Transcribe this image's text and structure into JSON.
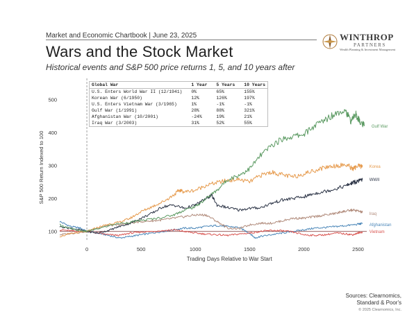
{
  "header": {
    "chartbook": "Market and Economic Chartbook | June 23, 2025",
    "title": "Wars and the Stock Market",
    "subtitle": "Historical events and S&P 500 price returns 1, 5, and 10 years after"
  },
  "logo": {
    "name": "WINTHROP",
    "sub": "PARTNERS",
    "tagline": "Wealth Planning & Investment Management"
  },
  "table": {
    "headers": [
      "Global War",
      "1 Year",
      "5 Years",
      "10 Years"
    ],
    "rows": [
      [
        "U.S. Enters World War II (12/1941)",
        "0%",
        "65%",
        "155%"
      ],
      [
        "Korean War (6/1950)",
        "12%",
        "126%",
        "197%"
      ],
      [
        "U.S. Enters Vietnam War (3/1965)",
        "1%",
        "-1%",
        "-1%"
      ],
      [
        "Gulf War (1/1991)",
        "28%",
        "88%",
        "321%"
      ],
      [
        "Afghanistan War (10/2001)",
        "-24%",
        "19%",
        "21%"
      ],
      [
        "Iraq War (3/2003)",
        "31%",
        "52%",
        "55%"
      ]
    ]
  },
  "footer": {
    "sources_1": "Sources: Clearnomics,",
    "sources_2": "Standard & Poor's",
    "copyright": "© 2025 Clearnomics, Inc."
  },
  "chart_data": {
    "type": "line",
    "title": "",
    "xlabel": "Trading Days Relative to War Start",
    "ylabel": "S&P 500 Return Indexed to 100",
    "xlim": [
      -250,
      2580
    ],
    "ylim": [
      70,
      560
    ],
    "xticks": [
      0,
      500,
      1000,
      1500,
      2000,
      2500
    ],
    "yticks": [
      100,
      200,
      300,
      400,
      500
    ],
    "reference_vertical_x": 0,
    "reference_horizontal_y": 100,
    "series": [
      {
        "name": "Gulf War",
        "color": "#5b9a62",
        "points": [
          [
            -250,
            120
          ],
          [
            -150,
            108
          ],
          [
            -60,
            102
          ],
          [
            0,
            100
          ],
          [
            100,
            108
          ],
          [
            250,
            122
          ],
          [
            400,
            128
          ],
          [
            500,
            133
          ],
          [
            650,
            140
          ],
          [
            800,
            150
          ],
          [
            900,
            165
          ],
          [
            1000,
            175
          ],
          [
            1100,
            200
          ],
          [
            1200,
            225
          ],
          [
            1300,
            258
          ],
          [
            1400,
            270
          ],
          [
            1500,
            290
          ],
          [
            1600,
            330
          ],
          [
            1700,
            360
          ],
          [
            1800,
            380
          ],
          [
            1900,
            388
          ],
          [
            2000,
            395
          ],
          [
            2100,
            420
          ],
          [
            2200,
            440
          ],
          [
            2300,
            460
          ],
          [
            2380,
            470
          ],
          [
            2430,
            435
          ],
          [
            2480,
            455
          ],
          [
            2520,
            430
          ],
          [
            2560,
            420
          ]
        ]
      },
      {
        "name": "Korea",
        "color": "#e69a4c",
        "points": [
          [
            -250,
            85
          ],
          [
            -120,
            95
          ],
          [
            0,
            100
          ],
          [
            100,
            112
          ],
          [
            200,
            122
          ],
          [
            300,
            128
          ],
          [
            400,
            140
          ],
          [
            500,
            160
          ],
          [
            600,
            175
          ],
          [
            700,
            190
          ],
          [
            800,
            210
          ],
          [
            850,
            225
          ],
          [
            900,
            220
          ],
          [
            1000,
            225
          ],
          [
            1100,
            240
          ],
          [
            1200,
            248
          ],
          [
            1300,
            255
          ],
          [
            1400,
            258
          ],
          [
            1500,
            250
          ],
          [
            1600,
            270
          ],
          [
            1700,
            280
          ],
          [
            1800,
            272
          ],
          [
            1900,
            265
          ],
          [
            2000,
            275
          ],
          [
            2100,
            285
          ],
          [
            2200,
            295
          ],
          [
            2300,
            300
          ],
          [
            2400,
            302
          ],
          [
            2450,
            290
          ],
          [
            2500,
            298
          ],
          [
            2540,
            296
          ]
        ]
      },
      {
        "name": "WWII",
        "color": "#2c3446",
        "points": [
          [
            -250,
            115
          ],
          [
            -120,
            108
          ],
          [
            0,
            100
          ],
          [
            100,
            95
          ],
          [
            200,
            103
          ],
          [
            300,
            115
          ],
          [
            400,
            125
          ],
          [
            500,
            140
          ],
          [
            600,
            155
          ],
          [
            700,
            175
          ],
          [
            800,
            180
          ],
          [
            900,
            170
          ],
          [
            1000,
            180
          ],
          [
            1100,
            200
          ],
          [
            1150,
            210
          ],
          [
            1200,
            180
          ],
          [
            1300,
            172
          ],
          [
            1400,
            165
          ],
          [
            1500,
            170
          ],
          [
            1600,
            172
          ],
          [
            1700,
            185
          ],
          [
            1800,
            195
          ],
          [
            1900,
            200
          ],
          [
            2000,
            205
          ],
          [
            2100,
            215
          ],
          [
            2200,
            222
          ],
          [
            2300,
            230
          ],
          [
            2400,
            240
          ],
          [
            2450,
            248
          ],
          [
            2500,
            252
          ],
          [
            2540,
            257
          ]
        ]
      },
      {
        "name": "Iraq",
        "color": "#b08a7a",
        "points": [
          [
            -250,
            90
          ],
          [
            -120,
            95
          ],
          [
            0,
            100
          ],
          [
            100,
            110
          ],
          [
            200,
            118
          ],
          [
            300,
            120
          ],
          [
            400,
            125
          ],
          [
            500,
            130
          ],
          [
            600,
            132
          ],
          [
            700,
            135
          ],
          [
            800,
            140
          ],
          [
            900,
            145
          ],
          [
            1000,
            150
          ],
          [
            1100,
            150
          ],
          [
            1200,
            130
          ],
          [
            1300,
            110
          ],
          [
            1400,
            108
          ],
          [
            1500,
            120
          ],
          [
            1600,
            125
          ],
          [
            1700,
            125
          ],
          [
            1800,
            132
          ],
          [
            1900,
            140
          ],
          [
            2000,
            140
          ],
          [
            2100,
            145
          ],
          [
            2200,
            150
          ],
          [
            2300,
            155
          ],
          [
            2350,
            160
          ],
          [
            2400,
            162
          ],
          [
            2450,
            165
          ],
          [
            2500,
            162
          ],
          [
            2540,
            158
          ]
        ]
      },
      {
        "name": "Afghanistan",
        "color": "#4a86b8",
        "points": [
          [
            -250,
            130
          ],
          [
            -150,
            115
          ],
          [
            -60,
            110
          ],
          [
            0,
            100
          ],
          [
            100,
            95
          ],
          [
            200,
            88
          ],
          [
            300,
            80
          ],
          [
            400,
            85
          ],
          [
            500,
            90
          ],
          [
            600,
            95
          ],
          [
            700,
            100
          ],
          [
            800,
            105
          ],
          [
            900,
            110
          ],
          [
            1000,
            110
          ],
          [
            1100,
            115
          ],
          [
            1200,
            118
          ],
          [
            1300,
            115
          ],
          [
            1400,
            112
          ],
          [
            1500,
            95
          ],
          [
            1550,
            80
          ],
          [
            1600,
            85
          ],
          [
            1700,
            90
          ],
          [
            1800,
            95
          ],
          [
            1900,
            100
          ],
          [
            2000,
            105
          ],
          [
            2100,
            110
          ],
          [
            2200,
            112
          ],
          [
            2300,
            115
          ],
          [
            2400,
            118
          ],
          [
            2500,
            122
          ],
          [
            2540,
            124
          ]
        ]
      },
      {
        "name": "Vietnam",
        "color": "#d9534f",
        "points": [
          [
            -250,
            105
          ],
          [
            -150,
            102
          ],
          [
            -60,
            100
          ],
          [
            0,
            100
          ],
          [
            100,
            95
          ],
          [
            200,
            90
          ],
          [
            300,
            88
          ],
          [
            400,
            95
          ],
          [
            500,
            98
          ],
          [
            600,
            100
          ],
          [
            700,
            102
          ],
          [
            800,
            105
          ],
          [
            900,
            100
          ],
          [
            1000,
            95
          ],
          [
            1100,
            92
          ],
          [
            1200,
            90
          ],
          [
            1300,
            88
          ],
          [
            1400,
            92
          ],
          [
            1500,
            95
          ],
          [
            1600,
            100
          ],
          [
            1700,
            103
          ],
          [
            1800,
            102
          ],
          [
            1900,
            98
          ],
          [
            2000,
            90
          ],
          [
            2100,
            88
          ],
          [
            2200,
            90
          ],
          [
            2300,
            95
          ],
          [
            2400,
            92
          ],
          [
            2450,
            90
          ],
          [
            2500,
            95
          ],
          [
            2540,
            98
          ]
        ]
      }
    ]
  }
}
